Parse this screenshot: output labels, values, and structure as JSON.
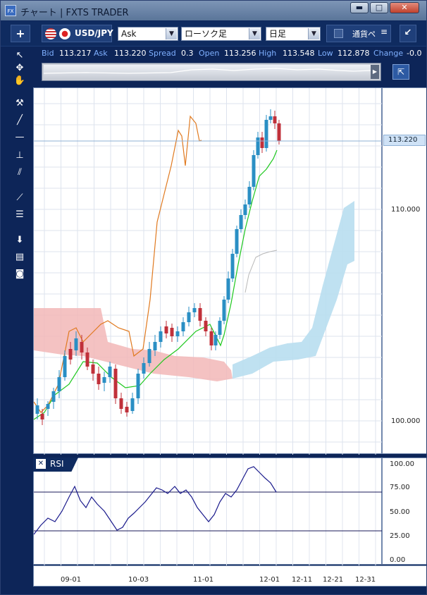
{
  "window": {
    "title": "チャート | FXTS TRADER",
    "app_icon": "FX",
    "minimize": "▬",
    "maximize": "□",
    "close": "✕"
  },
  "toolbar": {
    "add_symbol": "+",
    "symbol": "USD/JPY",
    "price_side": "Ask",
    "chart_type": "ローソク足",
    "timeframe": "日足",
    "currency_pair_label": "通貨ペ",
    "menu_icon": "≡",
    "collapse_icon": "↙"
  },
  "quote": {
    "bid_label": "Bid",
    "bid": "113.217",
    "ask_label": "Ask",
    "ask": "113.220",
    "spread_label": "Spread",
    "spread": "0.3",
    "open_label": "Open",
    "open": "113.256",
    "high_label": "High",
    "high": "113.548",
    "low_label": "Low",
    "low": "112.878",
    "change_label": "Change",
    "change": "-0.0"
  },
  "chart": {
    "current_price": "113.220",
    "y_ticks": [
      "110.000",
      "100.000"
    ],
    "rsi_label": "RSI",
    "rsi_close": "✕",
    "rsi_ticks": [
      "100.00",
      "75.00",
      "50.00",
      "25.00",
      "0.00"
    ],
    "date_ticks": [
      "09-01",
      "10-03",
      "11-01",
      "12-01",
      "12-11",
      "12-21",
      "12-31"
    ],
    "colors": {
      "bull": "#2a8fc4",
      "bear": "#c0303a",
      "conversion": "#1ec81e",
      "lagging": "#e07a20",
      "kumo_bear": "#f2b7b7",
      "kumo_bull": "#b8def0",
      "rsi": "#1a1a8c"
    }
  }
}
